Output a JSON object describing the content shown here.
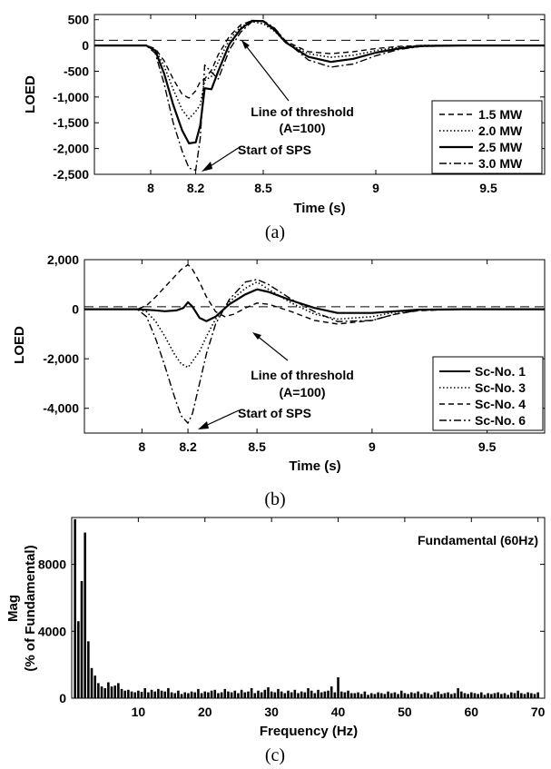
{
  "chart_data": [
    {
      "type": "line",
      "caption": "(a)",
      "xlabel": "Time (s)",
      "ylabel": "LOED",
      "xlim": [
        7.75,
        9.75
      ],
      "ylim": [
        -2500,
        600
      ],
      "xticks": [
        8,
        8.2,
        8.5,
        9,
        9.5
      ],
      "xtick_labels": [
        "8",
        "8.2",
        "8.5",
        "9",
        "9.5"
      ],
      "yticks": [
        500,
        0,
        -500,
        -1000,
        -1500,
        -2000,
        -2500
      ],
      "ytick_labels": [
        "500",
        "0",
        "-500",
        "-1,000",
        "-1,500",
        "-2,000",
        "-2,500"
      ],
      "threshold": 100,
      "legend_position": "bottom-right",
      "series": [
        {
          "name": "1.5 MW",
          "style": "dashed",
          "x": [
            7.75,
            7.98,
            8.02,
            8.06,
            8.1,
            8.14,
            8.17,
            8.2,
            8.22,
            8.24,
            8.27,
            8.3,
            8.35,
            8.4,
            8.45,
            8.5,
            8.55,
            8.6,
            8.7,
            8.8,
            8.9,
            9.0,
            9.1,
            9.2,
            9.4,
            9.6,
            9.75
          ],
          "y": [
            0,
            0,
            -60,
            -300,
            -650,
            -950,
            -1020,
            -880,
            -700,
            -650,
            -480,
            -180,
            180,
            400,
            480,
            470,
            330,
            80,
            -120,
            -160,
            -120,
            -60,
            -20,
            0,
            0,
            0,
            0
          ]
        },
        {
          "name": "2.0 MW",
          "style": "dotted",
          "x": [
            7.75,
            7.98,
            8.02,
            8.06,
            8.1,
            8.14,
            8.17,
            8.2,
            8.22,
            8.24,
            8.27,
            8.3,
            8.35,
            8.4,
            8.45,
            8.5,
            8.55,
            8.6,
            8.7,
            8.8,
            8.9,
            9.0,
            9.1,
            9.2,
            9.4,
            9.6,
            9.75
          ],
          "y": [
            0,
            0,
            -80,
            -400,
            -850,
            -1250,
            -1420,
            -1280,
            -1150,
            -680,
            -600,
            -320,
            120,
            360,
            460,
            420,
            280,
            60,
            -160,
            -230,
            -190,
            -100,
            -40,
            0,
            0,
            0,
            0
          ]
        },
        {
          "name": "2.5 MW",
          "style": "solid",
          "x": [
            7.75,
            7.98,
            8.02,
            8.06,
            8.1,
            8.14,
            8.17,
            8.2,
            8.22,
            8.24,
            8.27,
            8.3,
            8.35,
            8.4,
            8.45,
            8.5,
            8.55,
            8.6,
            8.7,
            8.8,
            8.9,
            9.0,
            9.1,
            9.2,
            9.4,
            9.6,
            9.75
          ],
          "y": [
            0,
            0,
            -100,
            -550,
            -1150,
            -1650,
            -1900,
            -1880,
            -1550,
            -830,
            -850,
            -500,
            30,
            320,
            480,
            470,
            300,
            60,
            -220,
            -320,
            -260,
            -140,
            -60,
            -10,
            0,
            0,
            0
          ]
        },
        {
          "name": "3.0 MW",
          "style": "dashdot",
          "x": [
            7.75,
            7.98,
            8.02,
            8.06,
            8.1,
            8.14,
            8.17,
            8.2,
            8.22,
            8.24,
            8.27,
            8.3,
            8.35,
            8.4,
            8.45,
            8.5,
            8.55,
            8.6,
            8.7,
            8.8,
            8.9,
            9.0,
            9.1,
            9.2,
            9.4,
            9.6,
            9.75
          ],
          "y": [
            0,
            0,
            -150,
            -750,
            -1500,
            -2050,
            -2380,
            -2420,
            -1800,
            -380,
            -520,
            -650,
            -80,
            260,
            460,
            480,
            340,
            80,
            -280,
            -420,
            -360,
            -200,
            -80,
            -20,
            0,
            0,
            0
          ]
        }
      ],
      "annotations": [
        {
          "text": "Line of threshold",
          "text2": "(A=100)"
        },
        {
          "text": "Start of SPS"
        }
      ]
    },
    {
      "type": "line",
      "caption": "(b)",
      "xlabel": "Time (s)",
      "ylabel": "LOED",
      "xlim": [
        7.75,
        9.75
      ],
      "ylim": [
        -5000,
        2000
      ],
      "xticks": [
        8,
        8.2,
        8.5,
        9,
        9.5
      ],
      "xtick_labels": [
        "8",
        "8.2",
        "8.5",
        "9",
        "9.5"
      ],
      "yticks": [
        2000,
        0,
        -2000,
        -4000
      ],
      "ytick_labels": [
        "2,000",
        "0",
        "-2,000",
        "-4,000"
      ],
      "threshold": 100,
      "legend_position": "bottom-right",
      "series": [
        {
          "name": "Sc-No. 1",
          "style": "solid",
          "x": [
            7.75,
            7.98,
            8.05,
            8.1,
            8.15,
            8.18,
            8.2,
            8.22,
            8.25,
            8.28,
            8.32,
            8.38,
            8.45,
            8.5,
            8.55,
            8.65,
            8.75,
            8.85,
            9.0,
            9.1,
            9.2,
            9.4,
            9.6,
            9.75
          ],
          "y": [
            0,
            0,
            -40,
            -80,
            -50,
            50,
            280,
            100,
            -350,
            -480,
            -300,
            200,
            600,
            800,
            700,
            350,
            50,
            -150,
            -150,
            -80,
            -20,
            0,
            0,
            0
          ]
        },
        {
          "name": "Sc-No. 3",
          "style": "dotted",
          "x": [
            7.75,
            7.98,
            8.02,
            8.06,
            8.1,
            8.14,
            8.17,
            8.2,
            8.22,
            8.25,
            8.28,
            8.32,
            8.38,
            8.45,
            8.5,
            8.55,
            8.65,
            8.75,
            8.85,
            9.0,
            9.1,
            9.2,
            9.4,
            9.6,
            9.75
          ],
          "y": [
            0,
            0,
            -100,
            -500,
            -1100,
            -1800,
            -2200,
            -2350,
            -2100,
            -1700,
            -1100,
            -400,
            300,
            850,
            1100,
            800,
            250,
            -200,
            -400,
            -300,
            -120,
            -30,
            0,
            0,
            0
          ]
        },
        {
          "name": "Sc-No. 4",
          "style": "dashed",
          "x": [
            7.75,
            7.98,
            8.02,
            8.06,
            8.1,
            8.14,
            8.17,
            8.2,
            8.22,
            8.25,
            8.28,
            8.32,
            8.36,
            8.4,
            8.45,
            8.5,
            8.55,
            8.65,
            8.75,
            8.85,
            9.0,
            9.1,
            9.2,
            9.4,
            9.6,
            9.75
          ],
          "y": [
            0,
            0,
            150,
            500,
            900,
            1300,
            1600,
            1800,
            1600,
            1100,
            500,
            -100,
            -300,
            -200,
            50,
            250,
            200,
            -100,
            -450,
            -600,
            -450,
            -200,
            -60,
            0,
            0,
            0
          ]
        },
        {
          "name": "Sc-No. 6",
          "style": "dashdot",
          "x": [
            7.75,
            7.98,
            8.02,
            8.06,
            8.1,
            8.14,
            8.17,
            8.2,
            8.22,
            8.25,
            8.28,
            8.32,
            8.38,
            8.45,
            8.5,
            8.55,
            8.65,
            8.75,
            8.85,
            9.0,
            9.1,
            9.2,
            9.4,
            9.6,
            9.75
          ],
          "y": [
            0,
            0,
            -300,
            -1200,
            -2300,
            -3500,
            -4300,
            -4600,
            -4200,
            -3000,
            -1800,
            -600,
            400,
            1100,
            1200,
            1000,
            400,
            -100,
            -500,
            -450,
            -200,
            -50,
            0,
            0,
            0
          ]
        }
      ],
      "annotations": [
        {
          "text": "Line of threshold",
          "text2": "(A=100)"
        },
        {
          "text": "Start of SPS"
        }
      ]
    },
    {
      "type": "bar",
      "caption": "(c)",
      "xlabel": "Frequency (Hz)",
      "ylabel": "Mag",
      "ylabel2": "(% of Fundamental)",
      "xlim": [
        0,
        71
      ],
      "ylim": [
        0,
        10800
      ],
      "xticks": [
        10,
        20,
        30,
        40,
        50,
        60,
        70
      ],
      "xtick_labels": [
        "10",
        "20",
        "30",
        "40",
        "50",
        "60",
        "70"
      ],
      "yticks": [
        0,
        4000,
        8000
      ],
      "ytick_labels": [
        "0",
        "4000",
        "8000"
      ],
      "legend_text": "Fundamental (60Hz)",
      "bar_width_hz": 0.35,
      "x": [
        0.5,
        1.0,
        1.5,
        2.0,
        2.5,
        3.0,
        3.5,
        4.0,
        4.5,
        5.0,
        5.5,
        6.0,
        6.5,
        7.0,
        7.5,
        8.0,
        8.5,
        9.0,
        9.5,
        10.0,
        10.5,
        11.0,
        11.5,
        12.0,
        12.5,
        13.0,
        13.5,
        14.0,
        14.5,
        15.0,
        15.5,
        16.0,
        16.5,
        17.0,
        17.5,
        18.0,
        18.5,
        19.0,
        19.5,
        20.0,
        20.5,
        21.0,
        21.5,
        22.0,
        22.5,
        23.0,
        23.5,
        24.0,
        24.5,
        25.0,
        25.5,
        26.0,
        26.5,
        27.0,
        27.5,
        28.0,
        28.5,
        29.0,
        29.5,
        30.0,
        30.5,
        31.0,
        31.5,
        32.0,
        32.5,
        33.0,
        33.5,
        34.0,
        34.5,
        35.0,
        35.5,
        36.0,
        36.5,
        37.0,
        37.5,
        38.0,
        38.5,
        39.0,
        39.5,
        40.0,
        40.5,
        41.0,
        41.5,
        42.0,
        42.5,
        43.0,
        43.5,
        44.0,
        44.5,
        45.0,
        45.5,
        46.0,
        46.5,
        47.0,
        47.5,
        48.0,
        48.5,
        49.0,
        49.5,
        50.0,
        50.5,
        51.0,
        51.5,
        52.0,
        52.5,
        53.0,
        53.5,
        54.0,
        54.5,
        55.0,
        55.5,
        56.0,
        56.5,
        57.0,
        57.5,
        58.0,
        58.5,
        59.0,
        59.5,
        60.0,
        60.5,
        61.0,
        61.5,
        62.0,
        62.5,
        63.0,
        63.5,
        64.0,
        64.5,
        65.0,
        65.5,
        66.0,
        66.5,
        67.0,
        67.5,
        68.0,
        68.5,
        69.0,
        69.5,
        70.0
      ],
      "values": [
        10700,
        4600,
        7000,
        9900,
        3400,
        1800,
        1350,
        900,
        700,
        600,
        950,
        700,
        750,
        900,
        550,
        450,
        500,
        400,
        350,
        450,
        380,
        600,
        350,
        500,
        400,
        550,
        450,
        400,
        600,
        350,
        300,
        450,
        250,
        350,
        300,
        400,
        350,
        550,
        300,
        400,
        350,
        450,
        500,
        300,
        350,
        550,
        400,
        350,
        450,
        300,
        500,
        350,
        400,
        600,
        300,
        450,
        350,
        500,
        650,
        400,
        350,
        550,
        400,
        300,
        450,
        350,
        500,
        300,
        400,
        350,
        600,
        450,
        300,
        500,
        350,
        400,
        450,
        700,
        350,
        1250,
        400,
        350,
        450,
        300,
        300,
        350,
        250,
        400,
        200,
        300,
        250,
        350,
        300,
        250,
        400,
        300,
        350,
        250,
        450,
        300,
        250,
        350,
        300,
        400,
        250,
        350,
        300,
        200,
        350,
        400,
        250,
        300,
        350,
        250,
        300,
        600,
        400,
        300,
        250,
        350,
        300,
        250,
        350,
        200,
        300,
        250,
        300,
        350,
        250,
        300,
        200,
        350,
        300,
        450,
        300,
        250,
        350,
        300,
        250,
        350
      ]
    }
  ]
}
